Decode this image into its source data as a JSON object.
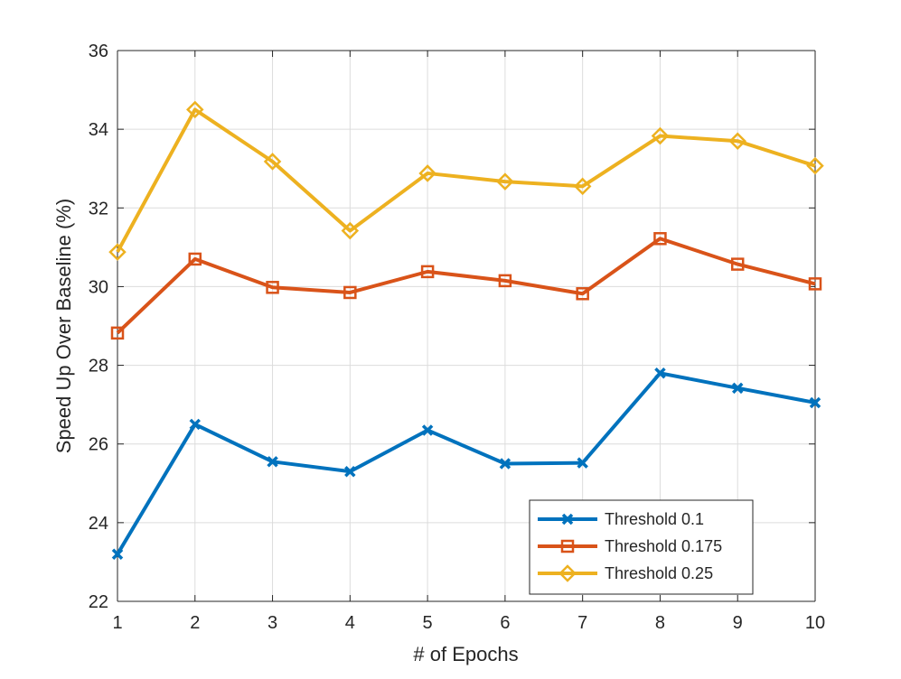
{
  "chart_data": {
    "type": "line",
    "title": "",
    "xlabel": "# of Epochs",
    "ylabel": "Speed Up Over Baseline (%)",
    "x": [
      1,
      2,
      3,
      4,
      5,
      6,
      7,
      8,
      9,
      10
    ],
    "xlim": [
      1,
      10
    ],
    "ylim": [
      22,
      36
    ],
    "xticks": [
      1,
      2,
      3,
      4,
      5,
      6,
      7,
      8,
      9,
      10
    ],
    "yticks": [
      22,
      24,
      26,
      28,
      30,
      32,
      34,
      36
    ],
    "grid": true,
    "legend_position": "bottom-right",
    "series": [
      {
        "name": "Threshold 0.1",
        "color": "#0072BD",
        "marker": "x",
        "values": [
          23.2,
          26.5,
          25.55,
          25.3,
          26.35,
          25.5,
          25.52,
          27.8,
          27.42,
          27.05
        ]
      },
      {
        "name": "Threshold 0.175",
        "color": "#D95319",
        "marker": "square",
        "values": [
          28.82,
          30.7,
          29.98,
          29.85,
          30.38,
          30.15,
          29.82,
          31.22,
          30.57,
          30.07
        ]
      },
      {
        "name": "Threshold 0.25",
        "color": "#EDB120",
        "marker": "diamond",
        "values": [
          30.88,
          34.5,
          33.18,
          31.42,
          32.88,
          32.67,
          32.55,
          33.83,
          33.7,
          33.07
        ]
      }
    ]
  }
}
